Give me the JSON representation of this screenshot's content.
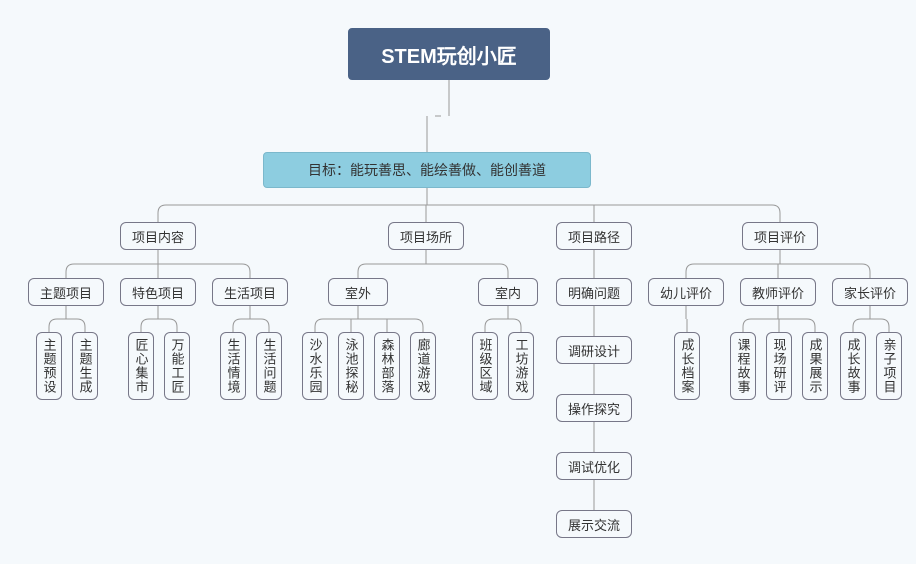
{
  "type": "tree",
  "background_color": "#f5f9fc",
  "connector_color": "#999999",
  "node_border_color": "#778",
  "node_border_radius": 6,
  "root": {
    "label": "STEM玩创小匠",
    "bg": "#4a6286",
    "fg": "#ffffff",
    "fontsize": 20
  },
  "goal": {
    "label": "目标：能玩善思、能绘善做、能创善道",
    "bg": "#8dcde0",
    "fg": "#333333",
    "fontsize": 14
  },
  "branches": {
    "content": {
      "label": "项目内容",
      "children": [
        {
          "label": "主题项目",
          "leaves": [
            "主题预设",
            "主题生成"
          ]
        },
        {
          "label": "特色项目",
          "leaves": [
            "匠心集市",
            "万能工匠"
          ]
        },
        {
          "label": "生活项目",
          "leaves": [
            "生活情境",
            "生活问题"
          ]
        }
      ]
    },
    "place": {
      "label": "项目场所",
      "children": [
        {
          "label": "室外",
          "leaves": [
            "沙水乐园",
            "泳池探秘",
            "森林部落",
            "廊道游戏"
          ]
        },
        {
          "label": "室内",
          "leaves": [
            "班级区域",
            "工坊游戏"
          ]
        }
      ]
    },
    "path": {
      "label": "项目路径",
      "chain": [
        "明确问题",
        "调研设计",
        "操作探究",
        "调试优化",
        "展示交流"
      ]
    },
    "eval": {
      "label": "项目评价",
      "children": [
        {
          "label": "幼儿评价",
          "leaves": [
            "成长档案"
          ]
        },
        {
          "label": "教师评价",
          "leaves": [
            "课程故事",
            "现场研评",
            "成果展示"
          ]
        },
        {
          "label": "家长评价",
          "leaves": [
            "成长故事",
            "亲子项目"
          ]
        }
      ]
    }
  }
}
